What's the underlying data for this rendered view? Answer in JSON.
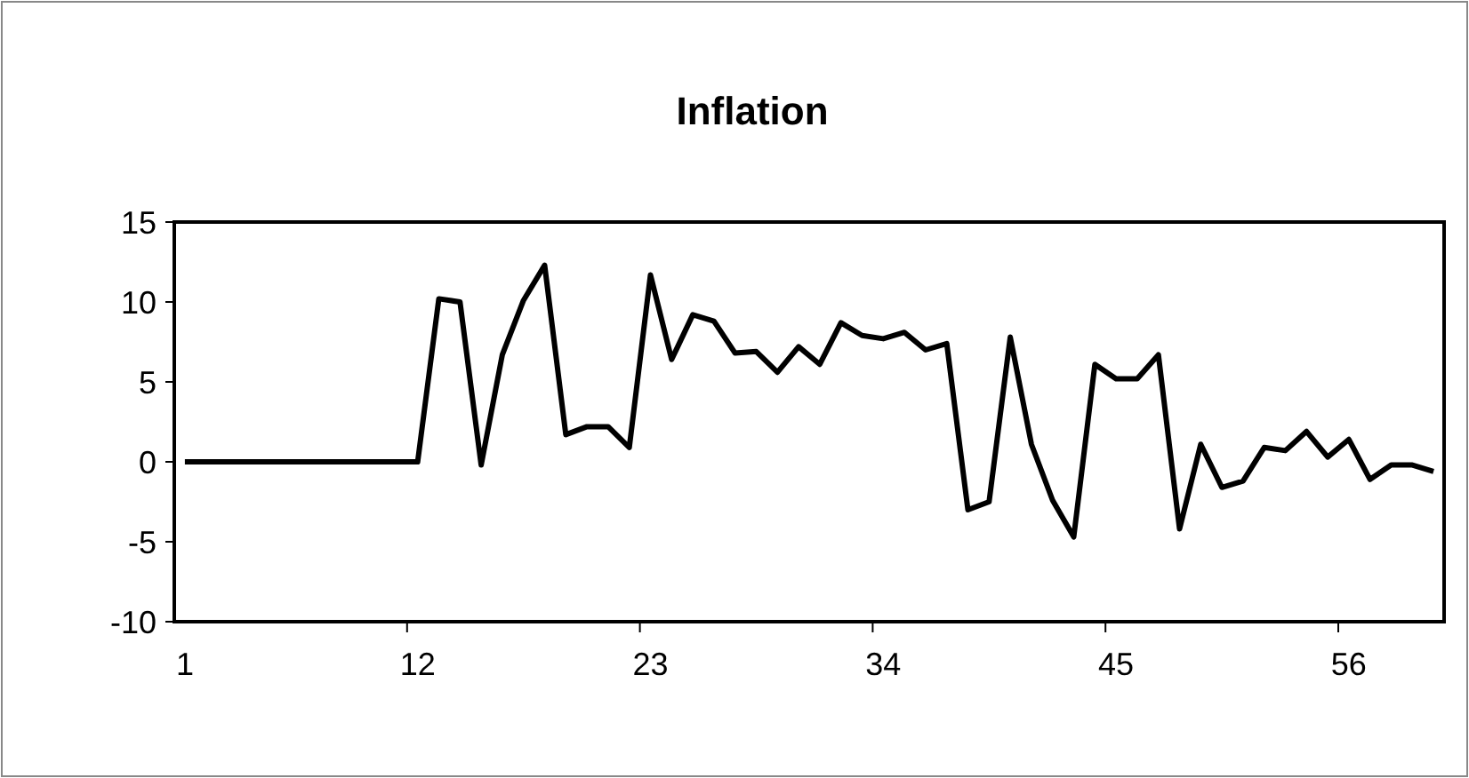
{
  "chart_data": {
    "type": "line",
    "title": "Inflation",
    "categories": [
      "1",
      null,
      null,
      null,
      null,
      null,
      null,
      null,
      null,
      null,
      null,
      "12",
      null,
      null,
      null,
      null,
      null,
      null,
      null,
      null,
      null,
      null,
      "23",
      null,
      null,
      null,
      null,
      null,
      null,
      null,
      null,
      null,
      null,
      "34",
      null,
      null,
      null,
      null,
      null,
      null,
      null,
      null,
      null,
      null,
      "45",
      null,
      null,
      null,
      null,
      null,
      null,
      null,
      null,
      null,
      null,
      "56",
      null,
      null,
      null,
      null
    ],
    "series": [
      {
        "color": "#000000",
        "values": [
          0,
          0,
          0,
          0,
          0,
          0,
          0,
          0,
          0,
          0,
          0,
          0,
          10.2,
          10.0,
          -0.2,
          6.7,
          10.1,
          12.3,
          1.7,
          2.2,
          2.2,
          0.9,
          11.7,
          6.4,
          9.2,
          8.8,
          6.8,
          6.9,
          5.6,
          7.2,
          6.1,
          8.7,
          7.9,
          7.7,
          8.1,
          7.0,
          7.4,
          -3.0,
          -2.5,
          7.8,
          1.1,
          -2.4,
          -4.7,
          6.1,
          5.2,
          5.2,
          6.7,
          -4.2,
          1.1,
          -1.6,
          -1.2,
          0.9,
          0.7,
          1.9,
          0.3,
          1.4,
          -1.1,
          -0.2,
          -0.2,
          -0.6
        ]
      }
    ],
    "ylim": [
      -10,
      15
    ],
    "yticks": [
      -10,
      -5,
      0,
      5,
      10,
      15
    ],
    "grid": false,
    "marker": "none",
    "line_style": "solid"
  }
}
